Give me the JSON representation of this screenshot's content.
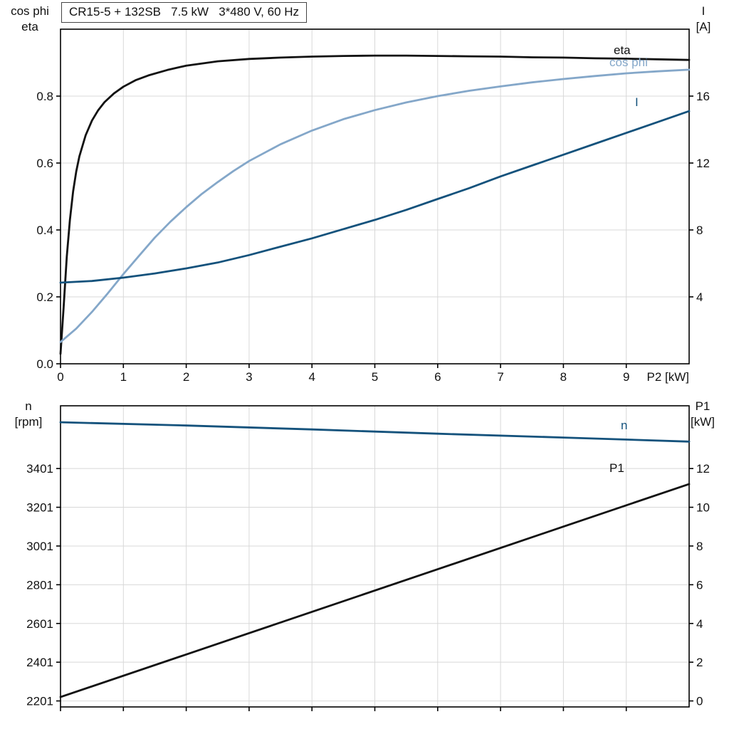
{
  "colors": {
    "black": "#111111",
    "dark_blue": "#14527c",
    "light_blue": "#84a7c9",
    "grid": "#d8d8d8",
    "axis": "#000000"
  },
  "chart_data": [
    {
      "type": "line",
      "title": "CR15-5 + 132SB   7.5 kW   3*480 V, 60 Hz",
      "x": {
        "lim": [
          0,
          10
        ],
        "ticks": [
          "0",
          "1",
          "2",
          "3",
          "4",
          "5",
          "6",
          "7",
          "8",
          "9"
        ],
        "label": "P2 [kW]"
      },
      "y_left": {
        "label_lines": [
          "cos phi",
          "eta"
        ],
        "lim": [
          0,
          1
        ],
        "ticks": [
          "0.0",
          "0.2",
          "0.4",
          "0.6",
          "0.8"
        ]
      },
      "y_right": {
        "label_lines": [
          "I",
          "[A]"
        ],
        "lim": [
          0,
          20
        ],
        "ticks": [
          "4",
          "8",
          "12",
          "16"
        ]
      },
      "grid": true,
      "series": [
        {
          "name": "eta",
          "axis": "left",
          "color_key": "black",
          "points": [
            [
              0,
              0.03
            ],
            [
              0.05,
              0.17
            ],
            [
              0.1,
              0.32
            ],
            [
              0.15,
              0.43
            ],
            [
              0.2,
              0.515
            ],
            [
              0.25,
              0.575
            ],
            [
              0.3,
              0.62
            ],
            [
              0.4,
              0.683
            ],
            [
              0.5,
              0.727
            ],
            [
              0.6,
              0.758
            ],
            [
              0.7,
              0.782
            ],
            [
              0.85,
              0.808
            ],
            [
              1,
              0.828
            ],
            [
              1.2,
              0.848
            ],
            [
              1.4,
              0.862
            ],
            [
              1.7,
              0.878
            ],
            [
              2,
              0.891
            ],
            [
              2.5,
              0.904
            ],
            [
              3,
              0.911
            ],
            [
              3.5,
              0.915
            ],
            [
              4,
              0.918
            ],
            [
              4.5,
              0.92
            ],
            [
              5,
              0.921
            ],
            [
              5.5,
              0.921
            ],
            [
              6,
              0.92
            ],
            [
              6.5,
              0.919
            ],
            [
              7,
              0.918
            ],
            [
              7.5,
              0.916
            ],
            [
              8,
              0.915
            ],
            [
              8.5,
              0.913
            ],
            [
              9,
              0.912
            ],
            [
              9.5,
              0.91
            ],
            [
              10,
              0.908
            ]
          ]
        },
        {
          "name": "cos phi",
          "axis": "left",
          "color_key": "light_blue",
          "points": [
            [
              0,
              0.065
            ],
            [
              0.25,
              0.105
            ],
            [
              0.5,
              0.155
            ],
            [
              0.75,
              0.21
            ],
            [
              1,
              0.268
            ],
            [
              1.25,
              0.323
            ],
            [
              1.5,
              0.377
            ],
            [
              1.75,
              0.425
            ],
            [
              2,
              0.468
            ],
            [
              2.25,
              0.508
            ],
            [
              2.5,
              0.543
            ],
            [
              2.75,
              0.576
            ],
            [
              3,
              0.606
            ],
            [
              3.5,
              0.656
            ],
            [
              4,
              0.697
            ],
            [
              4.5,
              0.731
            ],
            [
              5,
              0.758
            ],
            [
              5.5,
              0.781
            ],
            [
              6,
              0.8
            ],
            [
              6.5,
              0.816
            ],
            [
              7,
              0.829
            ],
            [
              7.5,
              0.841
            ],
            [
              8,
              0.851
            ],
            [
              8.5,
              0.86
            ],
            [
              9,
              0.868
            ],
            [
              9.5,
              0.874
            ],
            [
              10,
              0.879
            ]
          ]
        },
        {
          "name": "I",
          "axis": "right",
          "color_key": "dark_blue",
          "points": [
            [
              0,
              4.85
            ],
            [
              0.5,
              4.95
            ],
            [
              1,
              5.15
            ],
            [
              1.5,
              5.4
            ],
            [
              2,
              5.7
            ],
            [
              2.5,
              6.05
            ],
            [
              3,
              6.5
            ],
            [
              3.5,
              7
            ],
            [
              4,
              7.5
            ],
            [
              4.5,
              8.05
            ],
            [
              5,
              8.6
            ],
            [
              5.5,
              9.2
            ],
            [
              6,
              9.85
            ],
            [
              6.5,
              10.5
            ],
            [
              7,
              11.2
            ],
            [
              7.5,
              11.85
            ],
            [
              8,
              12.5
            ],
            [
              8.5,
              13.15
            ],
            [
              9,
              13.8
            ],
            [
              9.5,
              14.45
            ],
            [
              10,
              15.1
            ]
          ]
        }
      ]
    },
    {
      "type": "line",
      "title": "",
      "x": {
        "lim": [
          0,
          10
        ],
        "ticks": [
          "0",
          "1",
          "2",
          "3",
          "4",
          "5",
          "6",
          "7",
          "8",
          "9"
        ],
        "label": ""
      },
      "y_left": {
        "label_lines": [
          "n",
          "[rpm]"
        ],
        "lim": [
          2170,
          3725
        ],
        "ticks": [
          "2201",
          "2401",
          "2601",
          "2801",
          "3001",
          "3201",
          "3401"
        ]
      },
      "y_right": {
        "label_lines": [
          "P1",
          "[kW]"
        ],
        "lim": [
          -0.31,
          15.24
        ],
        "ticks": [
          "0",
          "2",
          "4",
          "6",
          "8",
          "10",
          "12"
        ]
      },
      "grid": true,
      "series": [
        {
          "name": "n",
          "axis": "left",
          "color_key": "dark_blue",
          "points": [
            [
              0,
              3640
            ],
            [
              2,
              3623
            ],
            [
              4,
              3603
            ],
            [
              6,
              3581
            ],
            [
              8,
              3561
            ],
            [
              10,
              3540
            ]
          ]
        },
        {
          "name": "P1",
          "axis": "right",
          "color_key": "black",
          "points": [
            [
              0,
              0.2
            ],
            [
              2,
              2.4
            ],
            [
              4,
              4.6
            ],
            [
              6,
              6.8
            ],
            [
              8,
              9
            ],
            [
              10,
              11.2
            ]
          ]
        }
      ]
    }
  ]
}
